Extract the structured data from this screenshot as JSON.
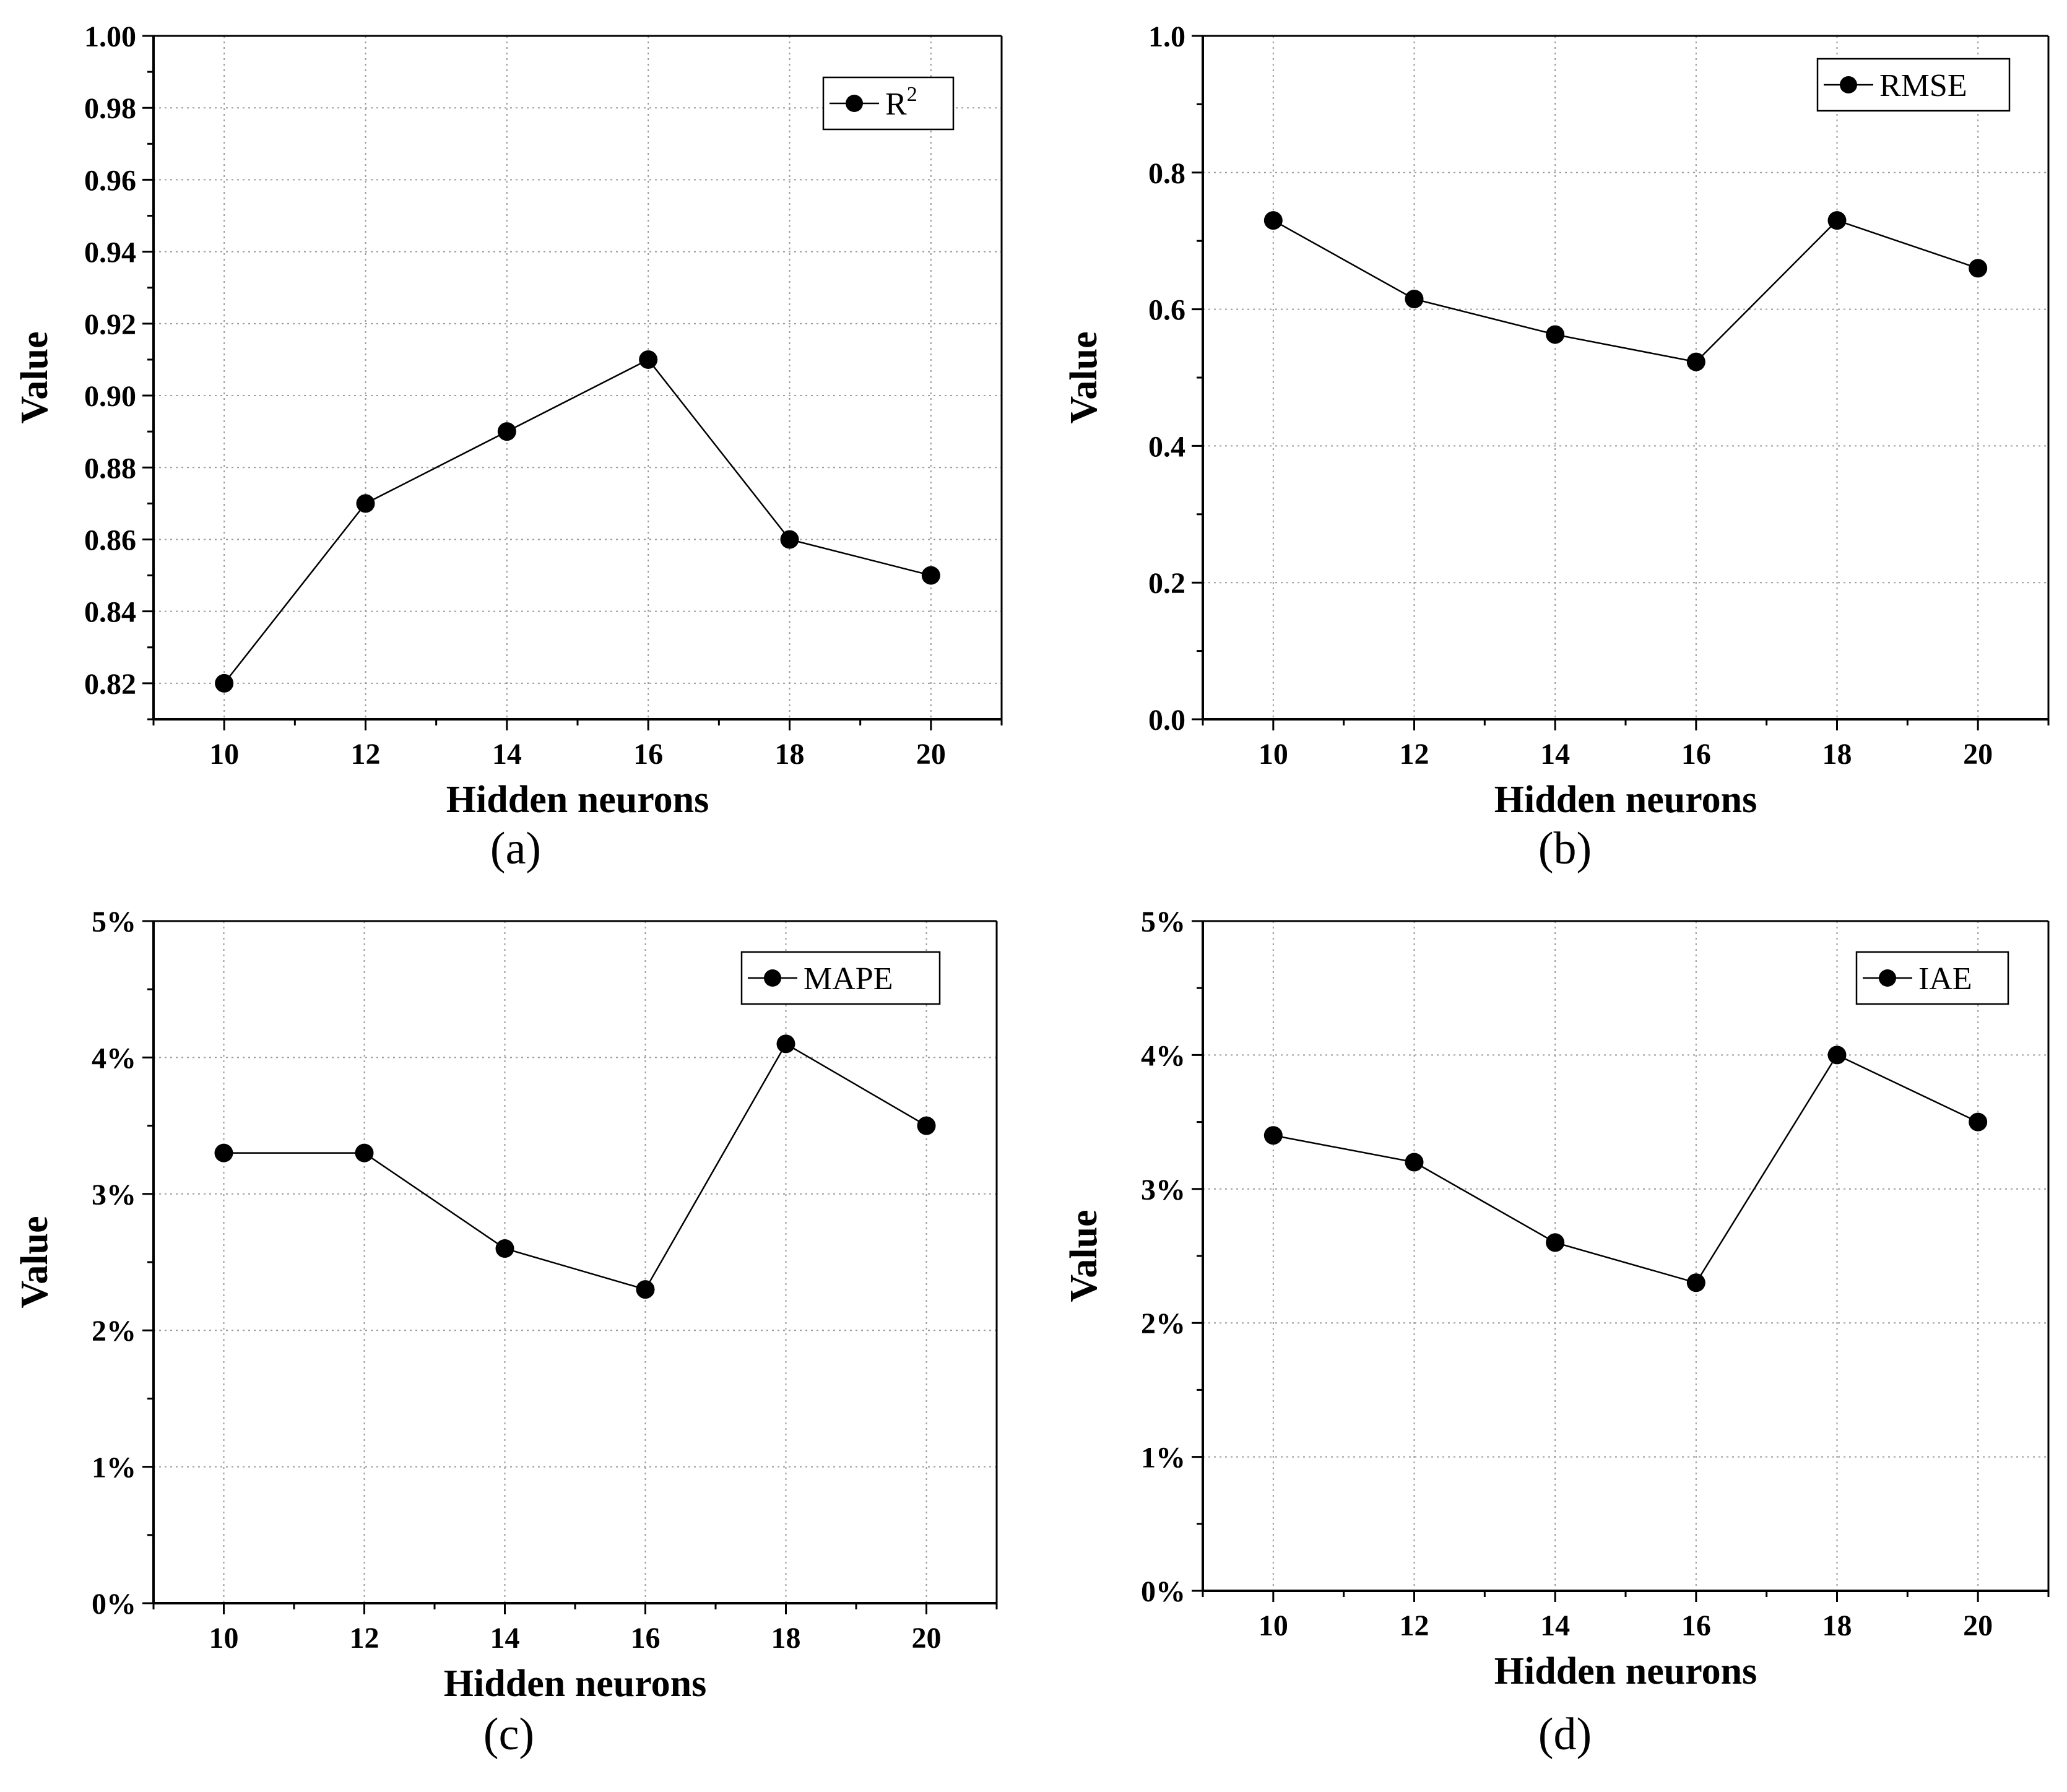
{
  "figure": {
    "panels": [
      {
        "id": "a",
        "caption": "(a)"
      },
      {
        "id": "b",
        "caption": "(b)"
      },
      {
        "id": "c",
        "caption": "(c)"
      },
      {
        "id": "d",
        "caption": "(d)"
      }
    ]
  },
  "chart_data": [
    {
      "id": "a",
      "type": "line",
      "caption": "(a)",
      "xlabel": "Hidden neurons",
      "ylabel": "Value",
      "legend": {
        "label": "R",
        "superscript": "2",
        "position": "top-right"
      },
      "grid": true,
      "x": [
        10,
        12,
        14,
        16,
        18,
        20
      ],
      "series": [
        {
          "name": "R2",
          "values": [
            0.82,
            0.87,
            0.89,
            0.91,
            0.86,
            0.85
          ]
        }
      ],
      "xlim": [
        9,
        21
      ],
      "ylim": [
        0.81,
        1.0
      ],
      "xticks": [
        10,
        12,
        14,
        16,
        18,
        20
      ],
      "yticks": [
        0.82,
        0.84,
        0.86,
        0.88,
        0.9,
        0.92,
        0.94,
        0.96,
        0.98,
        1.0
      ],
      "ytick_labels": [
        "0.82",
        "0.84",
        "0.86",
        "0.88",
        "0.90",
        "0.92",
        "0.94",
        "0.96",
        "0.98",
        "1.00"
      ]
    },
    {
      "id": "b",
      "type": "line",
      "caption": "(b)",
      "xlabel": "Hidden neurons",
      "ylabel": "Value",
      "legend": {
        "label": "RMSE",
        "superscript": "",
        "position": "top-right"
      },
      "grid": true,
      "x": [
        10,
        12,
        14,
        16,
        18,
        20
      ],
      "series": [
        {
          "name": "RMSE",
          "values": [
            0.73,
            0.615,
            0.563,
            0.523,
            0.73,
            0.66
          ]
        }
      ],
      "xlim": [
        9,
        21
      ],
      "ylim": [
        0.0,
        1.0
      ],
      "xticks": [
        10,
        12,
        14,
        16,
        18,
        20
      ],
      "yticks": [
        0.0,
        0.2,
        0.4,
        0.6,
        0.8,
        1.0
      ],
      "ytick_labels": [
        "0.0",
        "0.2",
        "0.4",
        "0.6",
        "0.8",
        "1.0"
      ]
    },
    {
      "id": "c",
      "type": "line",
      "caption": "(c)",
      "xlabel": "Hidden neurons",
      "ylabel": "Value",
      "legend": {
        "label": "MAPE",
        "superscript": "",
        "position": "top-right"
      },
      "grid": true,
      "x": [
        10,
        12,
        14,
        16,
        18,
        20
      ],
      "series": [
        {
          "name": "MAPE",
          "values": [
            3.3,
            3.3,
            2.6,
            2.3,
            4.1,
            3.5
          ]
        }
      ],
      "xlim": [
        9,
        21
      ],
      "ylim": [
        0,
        5
      ],
      "xticks": [
        10,
        12,
        14,
        16,
        18,
        20
      ],
      "yticks": [
        0,
        1,
        2,
        3,
        4,
        5
      ],
      "ytick_labels": [
        "0%",
        "1%",
        "2%",
        "3%",
        "4%",
        "5%"
      ]
    },
    {
      "id": "d",
      "type": "line",
      "caption": "(d)",
      "xlabel": "Hidden neurons",
      "ylabel": "Value",
      "legend": {
        "label": "IAE",
        "superscript": "",
        "position": "top-right"
      },
      "grid": true,
      "x": [
        10,
        12,
        14,
        16,
        18,
        20
      ],
      "series": [
        {
          "name": "IAE",
          "values": [
            3.4,
            3.2,
            2.6,
            2.3,
            4.0,
            3.5
          ]
        }
      ],
      "xlim": [
        9,
        21
      ],
      "ylim": [
        0,
        5
      ],
      "xticks": [
        10,
        12,
        14,
        16,
        18,
        20
      ],
      "yticks": [
        0,
        1,
        2,
        3,
        4,
        5
      ],
      "ytick_labels": [
        "0%",
        "1%",
        "2%",
        "3%",
        "4%",
        "5%"
      ]
    }
  ]
}
